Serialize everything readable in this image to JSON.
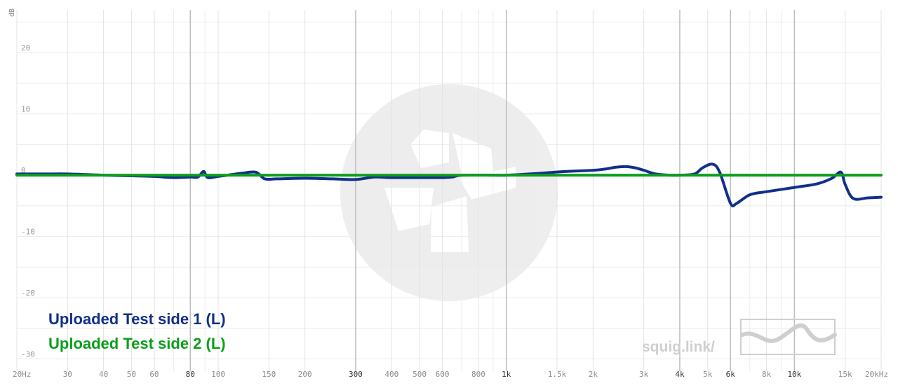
{
  "watermark": {
    "text": "squig.link/"
  },
  "chart_data": {
    "type": "line",
    "xscale": "log",
    "xlim": [
      20,
      20000
    ],
    "ylim": [
      -32,
      27
    ],
    "ylabel": "dB",
    "grid": true,
    "legend": "bottom-left",
    "y_ticks": [
      {
        "value": 20,
        "label": "20"
      },
      {
        "value": 10,
        "label": "10"
      },
      {
        "value": 0,
        "label": "0"
      },
      {
        "value": -10,
        "label": "-10"
      },
      {
        "value": -20,
        "label": "-20"
      },
      {
        "value": -30,
        "label": "-30"
      }
    ],
    "x_ticks": [
      {
        "value": 20,
        "label": "20Hz",
        "major": false
      },
      {
        "value": 30,
        "label": "30",
        "major": false
      },
      {
        "value": 40,
        "label": "40",
        "major": false
      },
      {
        "value": 50,
        "label": "50",
        "major": false
      },
      {
        "value": 60,
        "label": "60",
        "major": false
      },
      {
        "value": 80,
        "label": "80",
        "major": true
      },
      {
        "value": 100,
        "label": "100",
        "major": false
      },
      {
        "value": 150,
        "label": "150",
        "major": false
      },
      {
        "value": 200,
        "label": "200",
        "major": false
      },
      {
        "value": 300,
        "label": "300",
        "major": true
      },
      {
        "value": 400,
        "label": "400",
        "major": false
      },
      {
        "value": 500,
        "label": "500",
        "major": false
      },
      {
        "value": 600,
        "label": "600",
        "major": false
      },
      {
        "value": 800,
        "label": "800",
        "major": false
      },
      {
        "value": 1000,
        "label": "1k",
        "major": true
      },
      {
        "value": 1500,
        "label": "1.5k",
        "major": false
      },
      {
        "value": 2000,
        "label": "2k",
        "major": false
      },
      {
        "value": 3000,
        "label": "3k",
        "major": false
      },
      {
        "value": 4000,
        "label": "4k",
        "major": true
      },
      {
        "value": 5000,
        "label": "5k",
        "major": false
      },
      {
        "value": 6000,
        "label": "6k",
        "major": true
      },
      {
        "value": 8000,
        "label": "8k",
        "major": false
      },
      {
        "value": 10000,
        "label": "10k",
        "major": true
      },
      {
        "value": 15000,
        "label": "15k",
        "major": false
      },
      {
        "value": 20000,
        "label": "20kHz",
        "major": false
      }
    ],
    "minor_grid_x": [
      70,
      90,
      700,
      900,
      7000,
      9000
    ],
    "series": [
      {
        "name": "Uploaded Test side 1 (L)",
        "color": "#12308a",
        "x": [
          20,
          25,
          30,
          40,
          50,
          60,
          70,
          80,
          85,
          89,
          92,
          100,
          120,
          135,
          145,
          160,
          200,
          250,
          300,
          350,
          400,
          500,
          600,
          650,
          700,
          900,
          1000,
          1300,
          1600,
          2000,
          2200,
          2400,
          2600,
          2800,
          3000,
          3300,
          3700,
          4000,
          4500,
          4800,
          5200,
          5500,
          6000,
          6300,
          7000,
          8000,
          10000,
          12000,
          13500,
          14500,
          15000,
          16000,
          18000,
          20000
        ],
        "y": [
          0.2,
          0.2,
          0.2,
          0.0,
          -0.1,
          -0.2,
          -0.4,
          -0.3,
          -0.3,
          0.6,
          -0.4,
          -0.2,
          0.3,
          0.5,
          -0.6,
          -0.6,
          -0.5,
          -0.6,
          -0.7,
          -0.3,
          -0.4,
          -0.4,
          -0.4,
          -0.3,
          0.0,
          0.0,
          0.0,
          0.3,
          0.6,
          0.8,
          1.0,
          1.3,
          1.4,
          1.2,
          0.8,
          0.2,
          0.0,
          0.0,
          0.2,
          1.2,
          1.8,
          0.5,
          -4.6,
          -4.6,
          -3.2,
          -2.7,
          -2.0,
          -1.4,
          -0.5,
          0.5,
          -1.5,
          -3.8,
          -3.7,
          -3.6
        ]
      },
      {
        "name": "Uploaded Test side 2 (L)",
        "color": "#0c9e1c",
        "x": [
          20,
          20000
        ],
        "y": [
          0,
          0
        ]
      }
    ]
  }
}
